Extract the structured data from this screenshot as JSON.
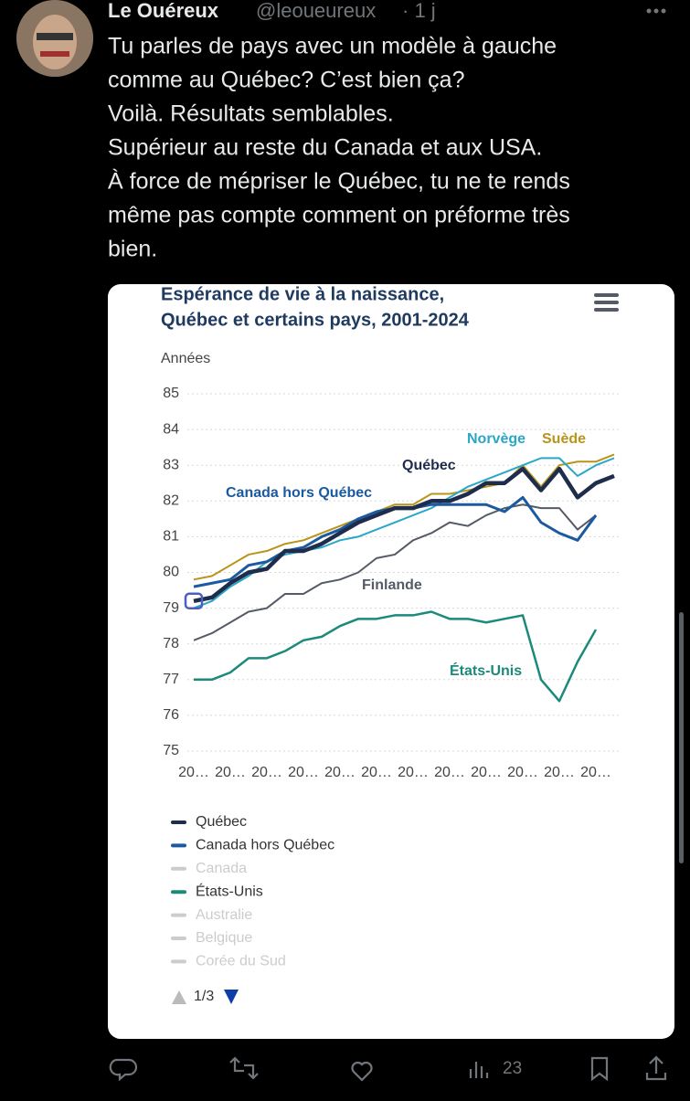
{
  "tweet": {
    "name": "Le Ouéreux",
    "handle": "@leoueureux",
    "time": "· 1 j",
    "text_lines": [
      "Tu parles de pays avec un modèle à gauche",
      "comme au Québec? C’est bien ça?",
      "Voilà. Résultats semblables.",
      "Supérieur au reste du Canada et aux USA.",
      "À force de mépriser le Québec, tu ne te rends",
      "même pas compte comment on préforme très",
      "bien."
    ],
    "views": "23"
  },
  "chart_data": {
    "type": "line",
    "title": [
      "Espérance de vie à la naissance,",
      "Québec et certains pays, 2001-2024"
    ],
    "y_label": "Années",
    "categories": [
      "20…",
      null,
      "20…",
      null,
      "20…",
      null,
      "20…",
      null,
      "20…",
      null,
      "20…",
      null,
      "20…",
      null,
      "20…",
      null,
      "20…",
      null,
      "20…",
      null,
      "20…",
      null,
      "20…",
      null
    ],
    "ylim": [
      75,
      85
    ],
    "yticks": [
      75,
      76,
      77,
      78,
      79,
      80,
      81,
      82,
      83,
      84,
      85
    ],
    "grid": true,
    "series": [
      {
        "name": "Québec",
        "color": "#1f2d4d",
        "values": [
          79.2,
          79.3,
          79.7,
          80.0,
          80.1,
          80.6,
          80.6,
          80.8,
          81.1,
          81.4,
          81.6,
          81.8,
          81.8,
          82.0,
          82.0,
          82.2,
          82.5,
          82.5,
          82.9,
          82.3,
          82.9,
          82.1,
          82.5,
          82.7
        ]
      },
      {
        "name": "Canada hors Québec",
        "color": "#1b5aa0",
        "values": [
          79.6,
          79.7,
          79.8,
          80.2,
          80.3,
          80.6,
          80.7,
          81.0,
          81.2,
          81.5,
          81.7,
          81.8,
          81.8,
          81.9,
          81.9,
          81.9,
          81.9,
          81.7,
          82.1,
          81.4,
          81.1,
          80.9,
          81.6,
          null
        ]
      },
      {
        "name": "Norvège",
        "color": "#2aa6c8",
        "values": [
          79.0,
          79.2,
          79.6,
          79.9,
          80.3,
          80.5,
          80.6,
          80.7,
          80.9,
          81.0,
          81.2,
          81.4,
          81.6,
          81.8,
          82.1,
          82.4,
          82.6,
          82.8,
          83.0,
          83.2,
          83.2,
          82.7,
          83.0,
          83.2
        ]
      },
      {
        "name": "Suède",
        "color": "#b8941a",
        "values": [
          79.8,
          79.9,
          80.2,
          80.5,
          80.6,
          80.8,
          80.9,
          81.1,
          81.3,
          81.5,
          81.7,
          81.9,
          81.9,
          82.2,
          82.2,
          82.3,
          82.4,
          82.5,
          83.0,
          82.4,
          83.0,
          83.1,
          83.1,
          83.3
        ]
      },
      {
        "name": "Finlande",
        "color": "#555b66",
        "values": [
          78.1,
          78.3,
          78.6,
          78.9,
          79.0,
          79.4,
          79.4,
          79.7,
          79.8,
          80.0,
          80.4,
          80.5,
          80.9,
          81.1,
          81.4,
          81.3,
          81.6,
          81.8,
          81.9,
          81.8,
          81.8,
          81.2,
          81.6,
          null
        ]
      },
      {
        "name": "États-Unis",
        "color": "#1b8a7a",
        "values": [
          77.0,
          77.0,
          77.2,
          77.6,
          77.6,
          77.8,
          78.1,
          78.2,
          78.5,
          78.7,
          78.7,
          78.8,
          78.8,
          78.9,
          78.7,
          78.7,
          78.6,
          78.7,
          78.8,
          77.0,
          76.4,
          77.5,
          78.4,
          null
        ]
      }
    ],
    "legend": {
      "items": [
        {
          "name": "Québec",
          "color": "#1f2d4d",
          "active": true
        },
        {
          "name": "Canada hors Québec",
          "color": "#1b5aa0",
          "active": true
        },
        {
          "name": "Canada",
          "color": "#cccccc",
          "active": false
        },
        {
          "name": "États-Unis",
          "color": "#1b8a7a",
          "active": true
        },
        {
          "name": "Australie",
          "color": "#cccccc",
          "active": false
        },
        {
          "name": "Belgique",
          "color": "#cccccc",
          "active": false
        },
        {
          "name": "Corée du Sud",
          "color": "#cccccc",
          "active": false
        }
      ],
      "page": "1/3"
    }
  }
}
